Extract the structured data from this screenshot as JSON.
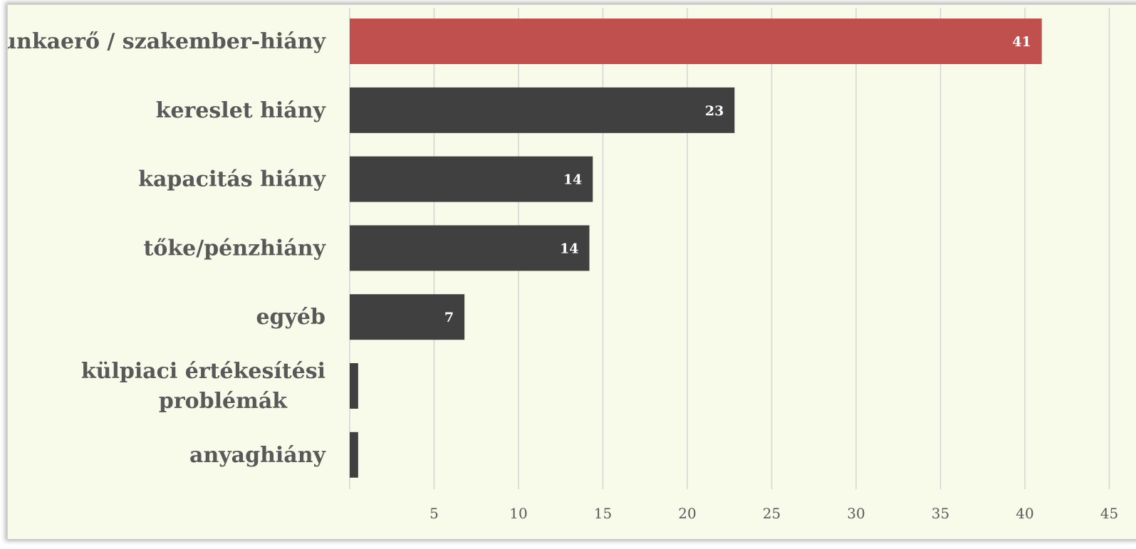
{
  "chart_data": {
    "type": "bar",
    "orientation": "horizontal",
    "title": "",
    "xlabel": "",
    "ylabel": "",
    "categories": [
      "munkaerő / szakember-hiány",
      "kereslet hiány",
      "kapacitás hiány",
      "tőke/pénzhiány",
      "egyéb",
      "külpiaci értékesítési problémák",
      "anyaghiány"
    ],
    "category_lines": [
      [
        "munkaerő / szakember-hiány"
      ],
      [
        "kereslet hiány"
      ],
      [
        "kapacitás hiány"
      ],
      [
        "tőke/pénzhiány"
      ],
      [
        "egyéb"
      ],
      [
        "külpiaci értékesítési",
        "problémák"
      ],
      [
        "anyaghiány"
      ]
    ],
    "values": [
      41,
      22.8,
      14.4,
      14.2,
      6.8,
      0.5,
      0.5
    ],
    "data_labels": [
      "41",
      "23",
      "14",
      "14",
      "7",
      "",
      ""
    ],
    "xlim": [
      0,
      45
    ],
    "xticks": [
      5,
      10,
      15,
      20,
      25,
      30,
      35,
      40,
      45
    ],
    "grid": true,
    "legend": "none",
    "colors": {
      "highlight": "#c0504d",
      "bar": "#404040",
      "background": "#f8fbea",
      "grid": "#d4d4d4",
      "label_text": "#595959"
    }
  }
}
